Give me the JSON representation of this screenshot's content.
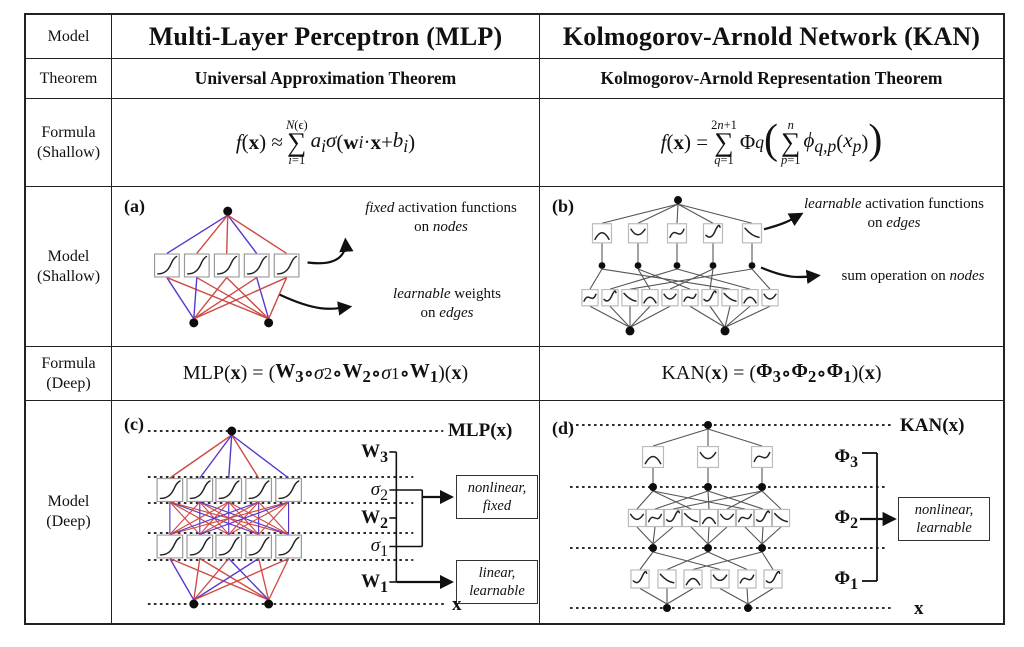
{
  "colors": {
    "edge_red": "#cf4a44",
    "edge_purple": "#5a35cc",
    "kan_edge": "#555555",
    "ink": "#111111"
  },
  "row_labels": {
    "r1": "Model",
    "r2": "Theorem",
    "r3": "Formula\n(Shallow)",
    "r4": "Model\n(Shallow)",
    "r5": "Formula\n(Deep)",
    "r6": "Model\n(Deep)"
  },
  "mlp": {
    "title": "Multi-Layer Perceptron (MLP)",
    "theorem": "Universal Approximation Theorem",
    "formula_shallow": "<i>f</i>(<b>x</b>) ≈ <span class='sum'><span class='l'><i>N</i>(ϵ)</span><span class='s'>∑</span><span class='l'><i>i</i>=1</span></span><i>a<sub>i</sub>σ</i>(<b>w</b><sub><i>i</i></sub> · <b>x</b> + <i>b<sub>i</sub></i>)",
    "formula_deep": "MLP(<b>x</b>) = (<b>W<sub>3</ssub></b><sub></sub> <span class='comp'>∘</span> <i>σ</i><sub>2</sub> <span class='comp'>∘</span> <b>W<sub>2</sub></b> <span class='comp'>∘</span> <i>σ</i><sub>1</sub> <span class='comp'>∘</span> <b>W<sub>1</sub></b>)(<b>x</b>)",
    "shallow": {
      "tag": "(a)",
      "ann_nodes": "<i>fixed</i> activation functions<br>on <i>nodes</i>",
      "ann_edges": "<i>learnable</i> weights<br>on <i>edges</i>"
    },
    "deep": {
      "tag": "(c)",
      "output": "MLP(<b>x</b>)",
      "input": "<b>x</b>",
      "w3": "<b>W<sub>3</sub></b>",
      "s2": "<i>σ</i><sub>2</sub>",
      "w2": "<b>W<sub>2</sub></b>",
      "s1": "<i>σ</i><sub>1</sub>",
      "w1": "<b>W<sub>1</sub></b>",
      "box_nonlinear": "<i>nonlinear,<br>fixed</i>",
      "box_linear": "<i>linear,<br>learnable</i>"
    }
  },
  "kan": {
    "title": "Kolmogorov-Arnold Network (KAN)",
    "theorem": "Kolmogorov-Arnold Representation Theorem",
    "formula_shallow": "<i>f</i>(<b>x</b>) = <span class='sum'><span class='l'>2<i>n</i>+1</span><span class='s'>∑</span><span class='l'><i>q</i>=1</span></span>Φ<sub><i>q</i></sub> <span class='big'>(</span><span class='sum'><span class='l'><i>n</i></span><span class='s'>∑</span><span class='l'><i>p</i>=1</span></span><i>ϕ<sub>q,p</sub></i>(<i>x<sub>p</sub></i>)<span class='big'>)</span>",
    "formula_deep": "KAN(<b>x</b>) = (<b>Φ<sub>3</sub></b> <span class='comp'>∘</span> <b>Φ<sub>2</sub></b> <span class='comp'>∘</span> <b>Φ<sub>1</sub></b>)(<b>x</b>)",
    "shallow": {
      "tag": "(b)",
      "ann_edges": "<i>learnable</i> activation functions<br>on <i>edges</i>",
      "ann_nodes": "sum operation on <i>nodes</i>"
    },
    "deep": {
      "tag": "(d)",
      "output": "KAN(<b>x</b>)",
      "input": "<b>x</b>",
      "p3": "<b>Φ<sub>3</sub></b>",
      "p2": "<b>Φ<sub>2</sub></b>",
      "p1": "<b>Φ<sub>1</sub></b>",
      "box_nonlinear": "<i>nonlinear,<br>learnable</i>"
    }
  }
}
